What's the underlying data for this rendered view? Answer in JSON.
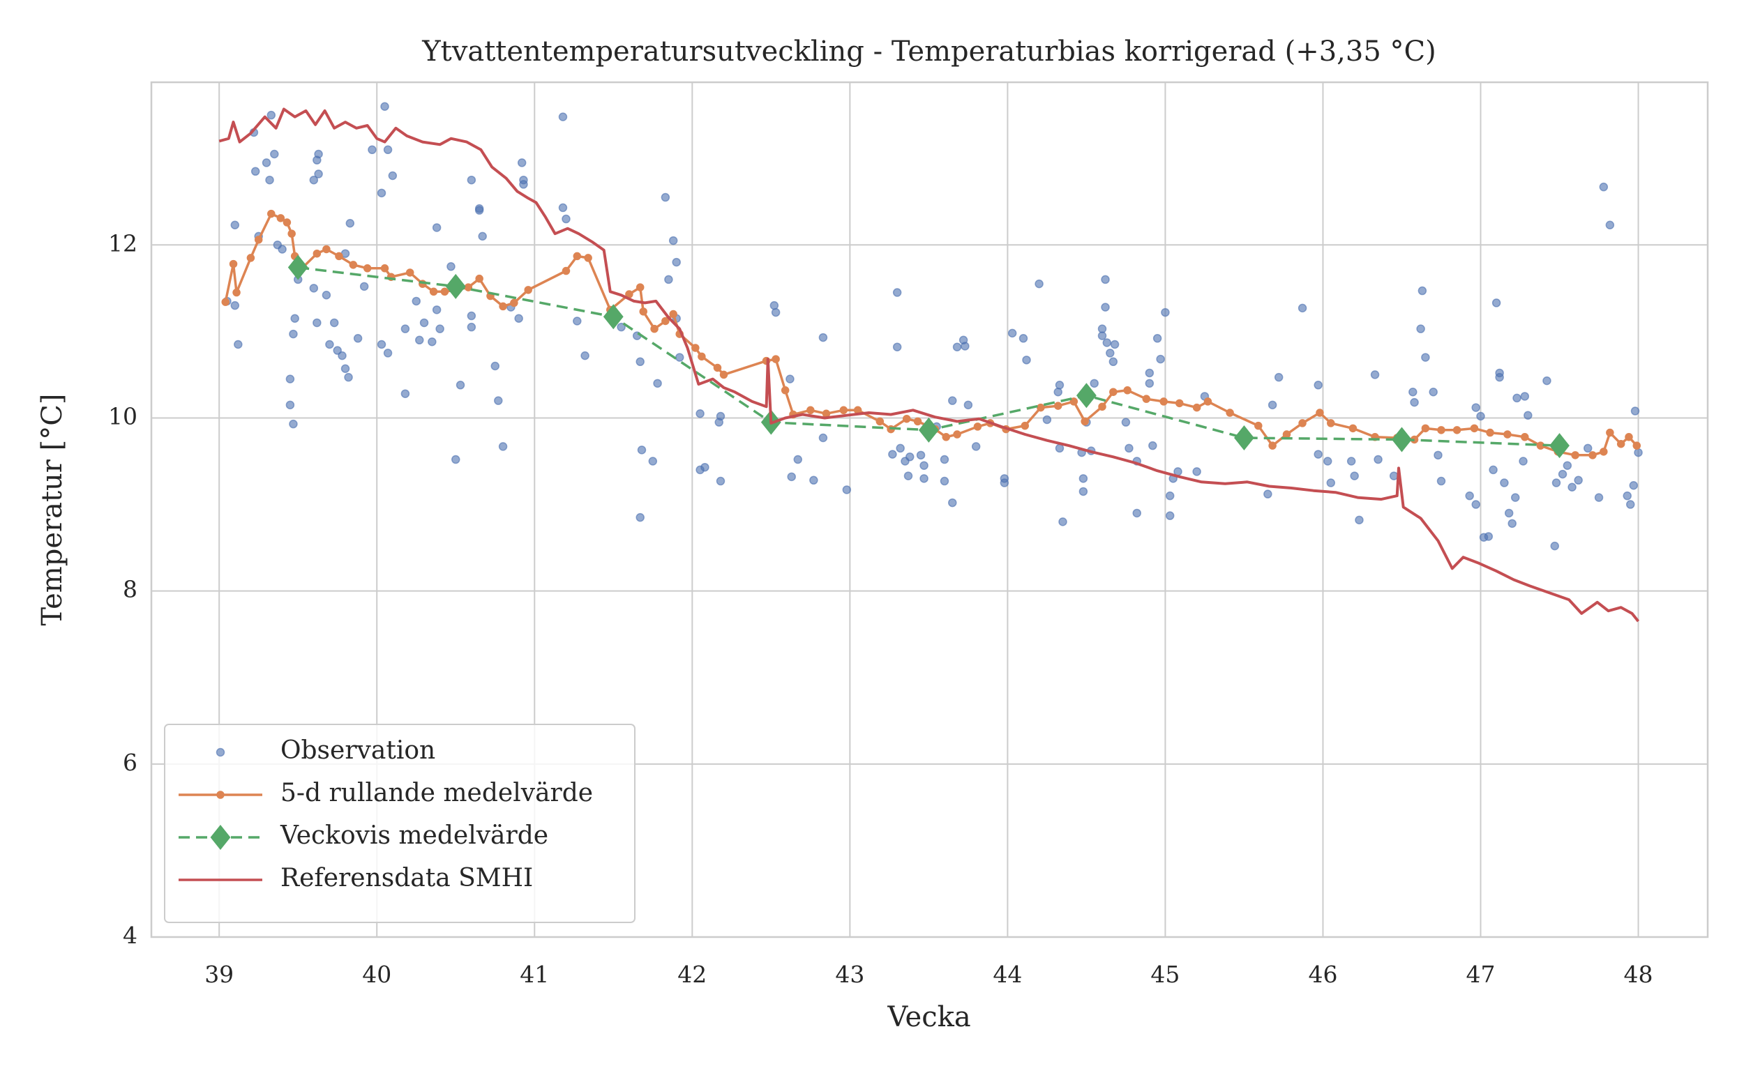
{
  "chart_data": {
    "type": "line",
    "title": "Ytvattentemperatursutveckling - Temperaturbias korrigerad (+3,35 °C)",
    "x_label": "Vecka",
    "y_label": "Temperatur [°C]",
    "xlim": [
      38.57,
      48.44
    ],
    "xticks": [
      39,
      40,
      41,
      42,
      43,
      44,
      45,
      46,
      47,
      48
    ],
    "ylim": [
      4,
      13.88
    ],
    "yticks": [
      4,
      6,
      8,
      10,
      12
    ],
    "grid": true,
    "legend": "lower left",
    "series": [
      {
        "name": "Observation",
        "color": "#4c72b0",
        "marker": "circle",
        "linestyle": "none",
        "x": [
          39.05,
          39.1,
          39.1,
          39.12,
          39.22,
          39.23,
          39.25,
          39.3,
          39.32,
          39.33,
          39.35,
          39.37,
          39.4,
          39.45,
          39.45,
          39.47,
          39.47,
          39.48,
          39.5,
          39.6,
          39.62,
          39.63,
          39.63,
          39.6,
          39.62,
          39.68,
          39.7,
          39.73,
          39.75,
          39.78,
          39.8,
          39.82,
          39.8,
          39.83,
          39.88,
          39.92,
          39.97,
          40.03,
          40.05,
          40.07,
          40.1,
          40.03,
          40.07,
          40.18,
          40.18,
          40.25,
          40.27,
          40.3,
          40.35,
          40.38,
          40.38,
          40.4,
          40.47,
          40.5,
          40.53,
          40.6,
          40.6,
          40.6,
          40.65,
          40.65,
          40.67,
          40.75,
          40.77,
          40.8,
          40.85,
          40.92,
          40.93,
          40.93,
          40.9,
          41.18,
          41.18,
          41.2,
          41.27,
          41.32,
          41.55,
          41.65,
          41.67,
          41.68,
          41.67,
          41.75,
          41.78,
          41.83,
          41.85,
          41.88,
          41.9,
          41.9,
          41.92,
          42.05,
          42.05,
          42.08,
          42.17,
          42.18,
          42.18,
          42.52,
          42.53,
          42.62,
          42.63,
          42.67,
          42.77,
          42.83,
          42.83,
          42.98,
          43.27,
          43.3,
          43.3,
          43.32,
          43.35,
          43.37,
          43.38,
          43.45,
          43.47,
          43.47,
          43.55,
          43.6,
          43.6,
          43.65,
          43.65,
          43.68,
          43.72,
          43.73,
          43.75,
          43.8,
          43.98,
          43.98,
          44.03,
          44.1,
          44.12,
          44.2,
          44.25,
          44.32,
          44.33,
          44.33,
          44.35,
          44.47,
          44.48,
          44.48,
          44.5,
          44.53,
          44.55,
          44.6,
          44.6,
          44.62,
          44.62,
          44.63,
          44.65,
          44.67,
          44.68,
          44.75,
          44.77,
          44.82,
          44.82,
          44.9,
          44.9,
          44.92,
          44.95,
          44.97,
          45.0,
          45.03,
          45.03,
          45.05,
          45.08,
          45.2,
          45.25,
          45.65,
          45.68,
          45.72,
          45.87,
          45.97,
          45.97,
          46.03,
          46.05,
          46.18,
          46.2,
          46.23,
          46.33,
          46.35,
          46.45,
          46.57,
          46.58,
          46.63,
          46.62,
          46.65,
          46.7,
          46.73,
          46.75,
          46.93,
          46.97,
          46.97,
          47.0,
          47.02,
          47.05,
          47.08,
          47.1,
          47.12,
          47.12,
          47.15,
          47.18,
          47.2,
          47.22,
          47.23,
          47.27,
          47.28,
          47.3,
          47.42,
          47.47,
          47.48,
          47.52,
          47.55,
          47.58,
          47.62,
          47.68,
          47.75,
          47.78,
          47.82,
          47.93,
          47.95,
          47.97,
          47.98,
          48.0
        ],
        "values": [
          11.35,
          12.23,
          11.3,
          10.85,
          13.3,
          12.85,
          12.1,
          12.95,
          12.75,
          13.5,
          13.05,
          12.0,
          11.95,
          10.45,
          10.15,
          9.93,
          10.97,
          11.15,
          11.6,
          12.75,
          12.98,
          13.05,
          12.82,
          11.5,
          11.1,
          11.42,
          10.85,
          11.1,
          10.78,
          10.72,
          10.57,
          10.47,
          11.9,
          12.25,
          10.92,
          11.52,
          13.1,
          12.6,
          13.6,
          13.1,
          12.8,
          10.85,
          10.75,
          10.28,
          11.03,
          11.35,
          10.9,
          11.1,
          10.88,
          11.25,
          12.2,
          11.03,
          11.75,
          9.52,
          10.38,
          12.75,
          11.18,
          11.05,
          12.4,
          12.42,
          12.1,
          10.6,
          10.2,
          9.67,
          11.28,
          12.95,
          12.75,
          12.7,
          11.15,
          13.48,
          12.43,
          12.3,
          11.12,
          10.72,
          11.05,
          10.95,
          10.65,
          9.63,
          8.85,
          9.5,
          10.4,
          12.55,
          11.6,
          12.05,
          11.8,
          11.15,
          10.7,
          10.05,
          9.4,
          9.43,
          9.95,
          10.02,
          9.27,
          11.3,
          11.22,
          10.45,
          9.32,
          9.52,
          9.28,
          10.93,
          9.77,
          9.17,
          9.58,
          11.45,
          10.82,
          9.65,
          9.5,
          9.33,
          9.55,
          9.57,
          9.45,
          9.3,
          9.9,
          9.52,
          9.27,
          9.02,
          10.2,
          10.82,
          10.9,
          10.83,
          10.15,
          9.67,
          9.3,
          9.25,
          10.98,
          10.92,
          10.67,
          11.55,
          9.98,
          10.3,
          10.38,
          9.65,
          8.8,
          9.6,
          9.3,
          9.15,
          9.95,
          9.62,
          10.4,
          11.03,
          10.95,
          11.6,
          11.28,
          10.87,
          10.75,
          10.65,
          10.85,
          9.95,
          9.65,
          9.5,
          8.9,
          10.52,
          10.4,
          9.68,
          10.92,
          10.68,
          11.22,
          9.1,
          8.87,
          9.3,
          9.38,
          9.38,
          10.25,
          9.12,
          10.15,
          10.47,
          11.27,
          10.38,
          9.58,
          9.5,
          9.25,
          9.5,
          9.33,
          8.82,
          10.5,
          9.52,
          9.33,
          10.3,
          10.18,
          11.47,
          11.03,
          10.7,
          10.3,
          9.57,
          9.27,
          9.1,
          9.0,
          10.12,
          10.02,
          8.62,
          8.63,
          9.4,
          11.33,
          10.52,
          10.47,
          9.25,
          8.9,
          8.78,
          9.08,
          10.23,
          9.5,
          10.25,
          10.03,
          10.43,
          8.52,
          9.25,
          9.35,
          9.45,
          9.2,
          9.28,
          9.65,
          9.08,
          12.67,
          12.23,
          9.1,
          9.0,
          9.22,
          10.08,
          9.6
        ]
      },
      {
        "name": "5-d rullande medelvärde",
        "color": "#dd8452",
        "marker": "circle",
        "linestyle": "solid",
        "x": [
          39.04,
          39.09,
          39.11,
          39.2,
          39.25,
          39.33,
          39.39,
          39.43,
          39.46,
          39.48,
          39.53,
          39.62,
          39.68,
          39.76,
          39.85,
          39.94,
          40.05,
          40.09,
          40.21,
          40.29,
          40.36,
          40.43,
          40.51,
          40.58,
          40.65,
          40.72,
          40.8,
          40.87,
          40.96,
          41.2,
          41.27,
          41.34,
          41.48,
          41.6,
          41.67,
          41.69,
          41.76,
          41.83,
          41.88,
          41.92,
          42.02,
          42.06,
          42.16,
          42.2,
          42.47,
          42.53,
          42.59,
          42.64,
          42.75,
          42.85,
          42.96,
          43.05,
          43.19,
          43.26,
          43.36,
          43.43,
          43.54,
          43.61,
          43.68,
          43.81,
          43.89,
          43.99,
          44.11,
          44.21,
          44.32,
          44.42,
          44.49,
          44.6,
          44.67,
          44.76,
          44.88,
          44.99,
          45.09,
          45.2,
          45.27,
          45.41,
          45.59,
          45.68,
          45.77,
          45.87,
          45.98,
          46.05,
          46.19,
          46.33,
          46.47,
          46.58,
          46.65,
          46.75,
          46.85,
          46.96,
          47.06,
          47.17,
          47.28,
          47.38,
          47.49,
          47.6,
          47.71,
          47.78,
          47.82,
          47.89,
          47.94,
          47.99
        ],
        "values": [
          11.34,
          11.78,
          11.45,
          11.85,
          12.06,
          12.36,
          12.31,
          12.26,
          12.13,
          11.87,
          11.74,
          11.9,
          11.95,
          11.87,
          11.77,
          11.73,
          11.73,
          11.63,
          11.68,
          11.55,
          11.46,
          11.46,
          11.48,
          11.51,
          11.61,
          11.41,
          11.29,
          11.33,
          11.48,
          11.7,
          11.87,
          11.85,
          11.25,
          11.43,
          11.51,
          11.23,
          11.03,
          11.12,
          11.2,
          10.97,
          10.81,
          10.71,
          10.58,
          10.5,
          10.66,
          10.68,
          10.32,
          10.04,
          10.09,
          10.05,
          10.09,
          10.09,
          9.96,
          9.87,
          9.99,
          9.96,
          9.87,
          9.78,
          9.81,
          9.9,
          9.94,
          9.87,
          9.91,
          10.12,
          10.14,
          10.19,
          9.96,
          10.13,
          10.3,
          10.32,
          10.22,
          10.19,
          10.17,
          10.12,
          10.19,
          10.06,
          9.91,
          9.68,
          9.81,
          9.94,
          10.06,
          9.94,
          9.88,
          9.78,
          9.77,
          9.75,
          9.88,
          9.86,
          9.86,
          9.88,
          9.83,
          9.81,
          9.78,
          9.68,
          9.61,
          9.57,
          9.57,
          9.61,
          9.83,
          9.7,
          9.78,
          9.68
        ]
      },
      {
        "name": "Veckovis medelvärde",
        "color": "#55a868",
        "marker": "diamond",
        "linestyle": "dashed",
        "x": [
          39.5,
          40.5,
          41.5,
          42.5,
          43.5,
          44.5,
          45.5,
          46.5,
          47.5
        ],
        "values": [
          11.74,
          11.52,
          11.17,
          9.95,
          9.86,
          10.26,
          9.77,
          9.75,
          9.68
        ]
      },
      {
        "name": "Referensdata SMHI",
        "color": "#c44e52",
        "marker": "none",
        "linestyle": "solid",
        "x": [
          39.0,
          39.06,
          39.09,
          39.13,
          39.2,
          39.29,
          39.36,
          39.41,
          39.48,
          39.55,
          39.61,
          39.67,
          39.73,
          39.8,
          39.87,
          39.94,
          40.0,
          40.05,
          40.12,
          40.19,
          40.29,
          40.4,
          40.47,
          40.57,
          40.66,
          40.73,
          40.82,
          40.89,
          40.96,
          41.01,
          41.07,
          41.13,
          41.21,
          41.28,
          41.37,
          41.44,
          41.48,
          41.55,
          41.63,
          41.7,
          41.77,
          41.85,
          41.92,
          41.97,
          42.04,
          42.13,
          42.2,
          42.27,
          42.38,
          42.47,
          42.48,
          42.5,
          42.59,
          42.7,
          42.84,
          42.98,
          43.12,
          43.26,
          43.4,
          43.54,
          43.68,
          43.82,
          43.96,
          44.11,
          44.25,
          44.39,
          44.53,
          44.67,
          44.81,
          44.95,
          45.09,
          45.23,
          45.38,
          45.52,
          45.66,
          45.8,
          45.94,
          46.08,
          46.22,
          46.37,
          46.47,
          46.48,
          46.51,
          46.62,
          46.73,
          46.82,
          46.89,
          46.99,
          47.1,
          47.21,
          47.31,
          47.45,
          47.56,
          47.64,
          47.74,
          47.81,
          47.89,
          47.96,
          48.0
        ],
        "values": [
          13.2,
          13.23,
          13.42,
          13.19,
          13.29,
          13.48,
          13.35,
          13.57,
          13.48,
          13.55,
          13.39,
          13.55,
          13.35,
          13.42,
          13.35,
          13.38,
          13.23,
          13.19,
          13.35,
          13.26,
          13.19,
          13.16,
          13.23,
          13.19,
          13.1,
          12.9,
          12.77,
          12.62,
          12.54,
          12.49,
          12.32,
          12.13,
          12.19,
          12.13,
          12.03,
          11.94,
          11.46,
          11.42,
          11.35,
          11.33,
          11.35,
          11.16,
          11.03,
          10.81,
          10.39,
          10.45,
          10.35,
          10.3,
          10.19,
          10.13,
          10.68,
          9.94,
          10.0,
          10.04,
          10.0,
          10.03,
          10.06,
          10.04,
          10.09,
          10.01,
          9.96,
          9.99,
          9.9,
          9.81,
          9.74,
          9.68,
          9.61,
          9.55,
          9.48,
          9.39,
          9.32,
          9.26,
          9.24,
          9.26,
          9.21,
          9.19,
          9.16,
          9.14,
          9.08,
          9.06,
          9.1,
          9.42,
          8.97,
          8.84,
          8.58,
          8.26,
          8.39,
          8.32,
          8.23,
          8.13,
          8.06,
          7.97,
          7.9,
          7.74,
          7.87,
          7.77,
          7.81,
          7.74,
          7.65
        ]
      }
    ]
  }
}
